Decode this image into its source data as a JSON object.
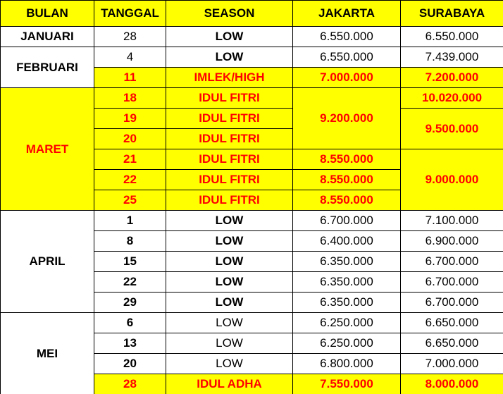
{
  "table": {
    "header": [
      "BULAN",
      "TANGGAL",
      "SEASON",
      "JAKARTA",
      "SURABAYA"
    ],
    "rows": [
      [
        "JANUARI",
        "28",
        "LOW",
        "6.550.000",
        "6.550.000"
      ],
      [
        "FEBRUARI",
        "4",
        "LOW",
        "6.550.000",
        "7.439.000"
      ],
      [
        "11",
        "IMLEK/HIGH",
        "7.000.000",
        "7.200.000"
      ],
      [
        "MARET",
        "18",
        "IDUL FITRI",
        "9.200.000",
        "10.020.000"
      ],
      [
        "19",
        "IDUL FITRI",
        "9.500.000"
      ],
      [
        "20",
        "IDUL FITRI"
      ],
      [
        "21",
        "IDUL FITRI",
        "8.550.000",
        "9.000.000"
      ],
      [
        "22",
        "IDUL FITRI",
        "8.550.000"
      ],
      [
        "25",
        "IDUL FITRI",
        "8.550.000"
      ],
      [
        "APRIL",
        "1",
        "LOW",
        "6.700.000",
        "7.100.000"
      ],
      [
        "8",
        "LOW",
        "6.400.000",
        "6.900.000"
      ],
      [
        "15",
        "LOW",
        "6.350.000",
        "6.700.000"
      ],
      [
        "22",
        "LOW",
        "6.350.000",
        "6.700.000"
      ],
      [
        "29",
        "LOW",
        "6.350.000",
        "6.700.000"
      ],
      [
        "MEI",
        "6",
        "LOW",
        "6.250.000",
        "6.650.000"
      ],
      [
        "13",
        "LOW",
        "6.250.000",
        "6.650.000"
      ],
      [
        "20",
        "LOW",
        "6.800.000",
        "7.000.000"
      ],
      [
        "28",
        "IDUL ADHA",
        "7.550.000",
        "8.000.000"
      ]
    ]
  }
}
